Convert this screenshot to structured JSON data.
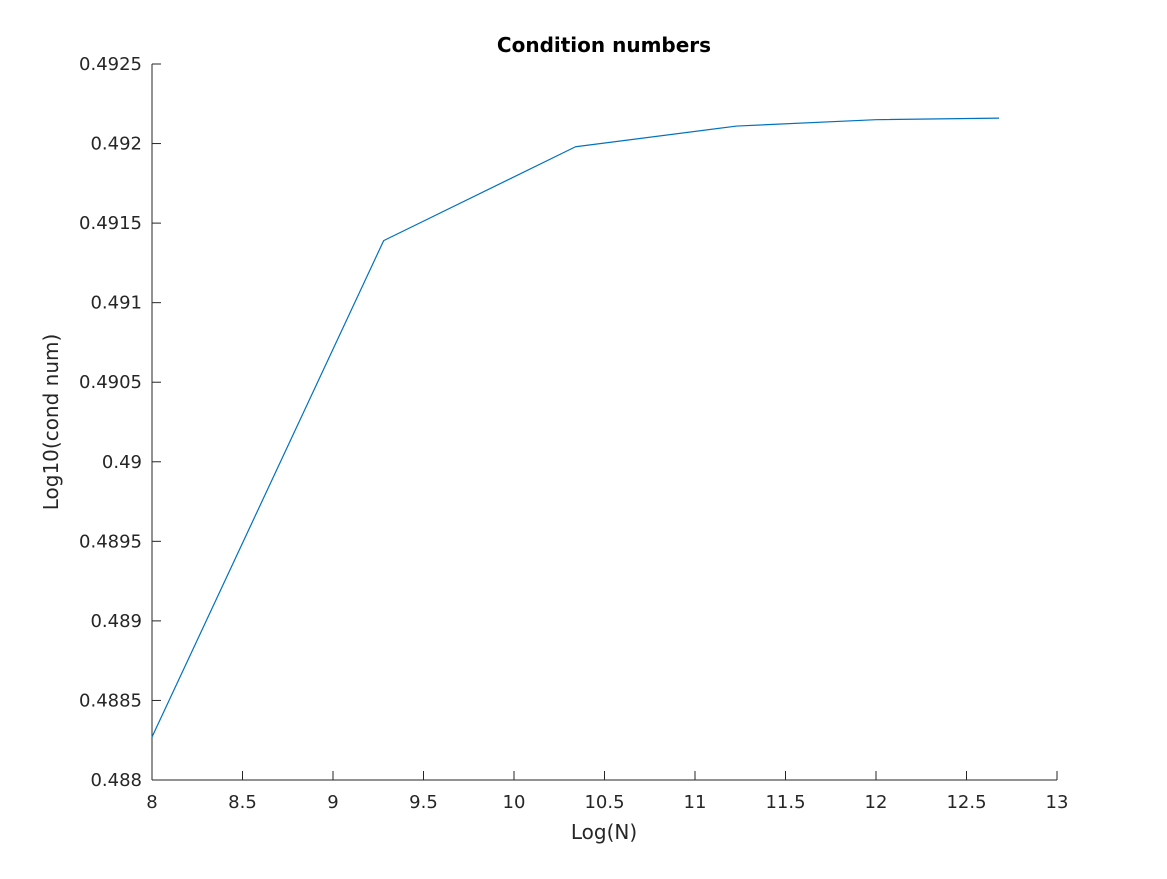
{
  "chart_data": {
    "type": "line",
    "title": "Condition numbers",
    "xlabel": "Log(N)",
    "ylabel": "Log10(cond num)",
    "xlim": [
      8,
      13
    ],
    "ylim": [
      0.488,
      0.4925
    ],
    "x_ticks": [
      8,
      8.5,
      9,
      9.5,
      10,
      10.5,
      11,
      11.5,
      12,
      12.5,
      13
    ],
    "x_tick_labels": [
      "8",
      "8.5",
      "9",
      "9.5",
      "10",
      "10.5",
      "11",
      "11.5",
      "12",
      "12.5",
      "13"
    ],
    "y_ticks": [
      0.488,
      0.4885,
      0.489,
      0.4895,
      0.49,
      0.4905,
      0.491,
      0.4915,
      0.492,
      0.4925
    ],
    "y_tick_labels": [
      "0.488",
      "0.4885",
      "0.489",
      "0.4895",
      "0.49",
      "0.4905",
      "0.491",
      "0.4915",
      "0.492",
      "0.4925"
    ],
    "grid": false,
    "legend": "none",
    "series": [
      {
        "color": "#0072BD",
        "x": [
          8,
          9.28,
          10.34,
          11.23,
          12,
          12.68
        ],
        "y": [
          0.48827,
          0.49139,
          0.49198,
          0.49211,
          0.49215,
          0.49216
        ]
      }
    ]
  }
}
